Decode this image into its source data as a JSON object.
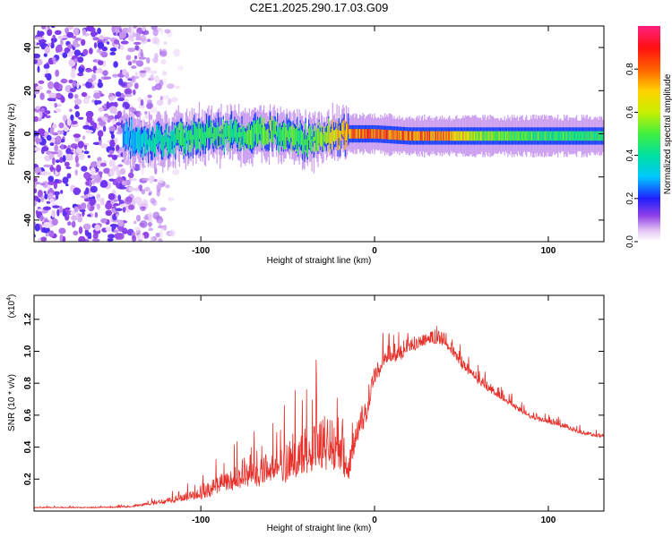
{
  "title": "C2E1.2025.290.17.03.G09",
  "chart_data": [
    {
      "type": "heatmap",
      "name": "spectrogram",
      "xlabel": "Height of straight line (km)",
      "ylabel": "Frequency (Hz)",
      "xlim": [
        -196,
        132
      ],
      "ylim": [
        -50,
        50
      ],
      "xticks": [
        -100,
        0,
        100
      ],
      "yticks": [
        -40,
        -20,
        0,
        20,
        40
      ],
      "xtick_labels": [
        "-100",
        "0",
        "100"
      ],
      "ytick_labels": [
        "-40",
        "-20",
        "0",
        "20",
        "40"
      ],
      "colorbar": {
        "label": "Normalized spectral amplitude",
        "range": [
          0,
          1
        ],
        "ticks": [
          0.0,
          0.2,
          0.4,
          0.6,
          0.8
        ],
        "tick_labels": [
          "0.0",
          "0.2",
          "0.4",
          "0.6",
          "0.8"
        ]
      },
      "description_points": {
        "noise_region_x": [
          -196,
          -135
        ],
        "signal_start_x": -145,
        "signal_center_freq": 0,
        "signal_track_x": [
          -145,
          -120,
          -100,
          -80,
          -60,
          -40,
          -20,
          0,
          20,
          40,
          60,
          80,
          100,
          130
        ],
        "signal_track_freq": [
          -2,
          -3,
          -1,
          0,
          1,
          -3,
          0,
          0,
          -1,
          -1,
          -1,
          -1,
          -1,
          -1
        ],
        "signal_track_amp": [
          0.3,
          0.45,
          0.5,
          0.5,
          0.55,
          0.5,
          0.75,
          0.9,
          0.85,
          0.85,
          0.6,
          0.55,
          0.5,
          0.5
        ]
      }
    },
    {
      "type": "line",
      "name": "snr",
      "xlabel": "Height of straight line (km)",
      "ylabel": "SNR (10 * v/v)",
      "yscale_label": "(x10",
      "yscale_exp": "4",
      "yscale_close": ")",
      "xlim": [
        -196,
        132
      ],
      "ylim": [
        0,
        1.35
      ],
      "xticks": [
        -100,
        0,
        100
      ],
      "yticks": [
        0.2,
        0.4,
        0.6,
        0.8,
        1.0,
        1.2
      ],
      "xtick_labels": [
        "-100",
        "0",
        "100"
      ],
      "ytick_labels": [
        "0.2",
        "0.4",
        "0.6",
        "0.8",
        "1.0",
        "1.2"
      ],
      "color": "#e8302a",
      "envelope": {
        "x": [
          -196,
          -160,
          -140,
          -130,
          -120,
          -110,
          -100,
          -90,
          -80,
          -70,
          -60,
          -50,
          -40,
          -30,
          -20,
          -15,
          -10,
          -5,
          0,
          5,
          10,
          15,
          20,
          30,
          40,
          50,
          60,
          70,
          80,
          90,
          100,
          110,
          120,
          132
        ],
        "base": [
          0.02,
          0.02,
          0.025,
          0.04,
          0.05,
          0.07,
          0.08,
          0.12,
          0.15,
          0.18,
          0.2,
          0.22,
          0.25,
          0.3,
          0.3,
          0.2,
          0.45,
          0.55,
          0.8,
          0.9,
          0.95,
          0.95,
          1.0,
          1.05,
          1.05,
          0.9,
          0.8,
          0.72,
          0.65,
          0.58,
          0.55,
          0.52,
          0.48,
          0.46
        ],
        "spike": [
          0.01,
          0.01,
          0.02,
          0.03,
          0.05,
          0.08,
          0.12,
          0.2,
          0.3,
          0.35,
          0.4,
          0.45,
          0.55,
          0.6,
          0.5,
          0.35,
          0.3,
          0.25,
          0.2,
          0.2,
          0.25,
          0.2,
          0.15,
          0.15,
          0.15,
          0.12,
          0.1,
          0.08,
          0.07,
          0.06,
          0.05,
          0.05,
          0.05,
          0.04
        ]
      }
    }
  ]
}
